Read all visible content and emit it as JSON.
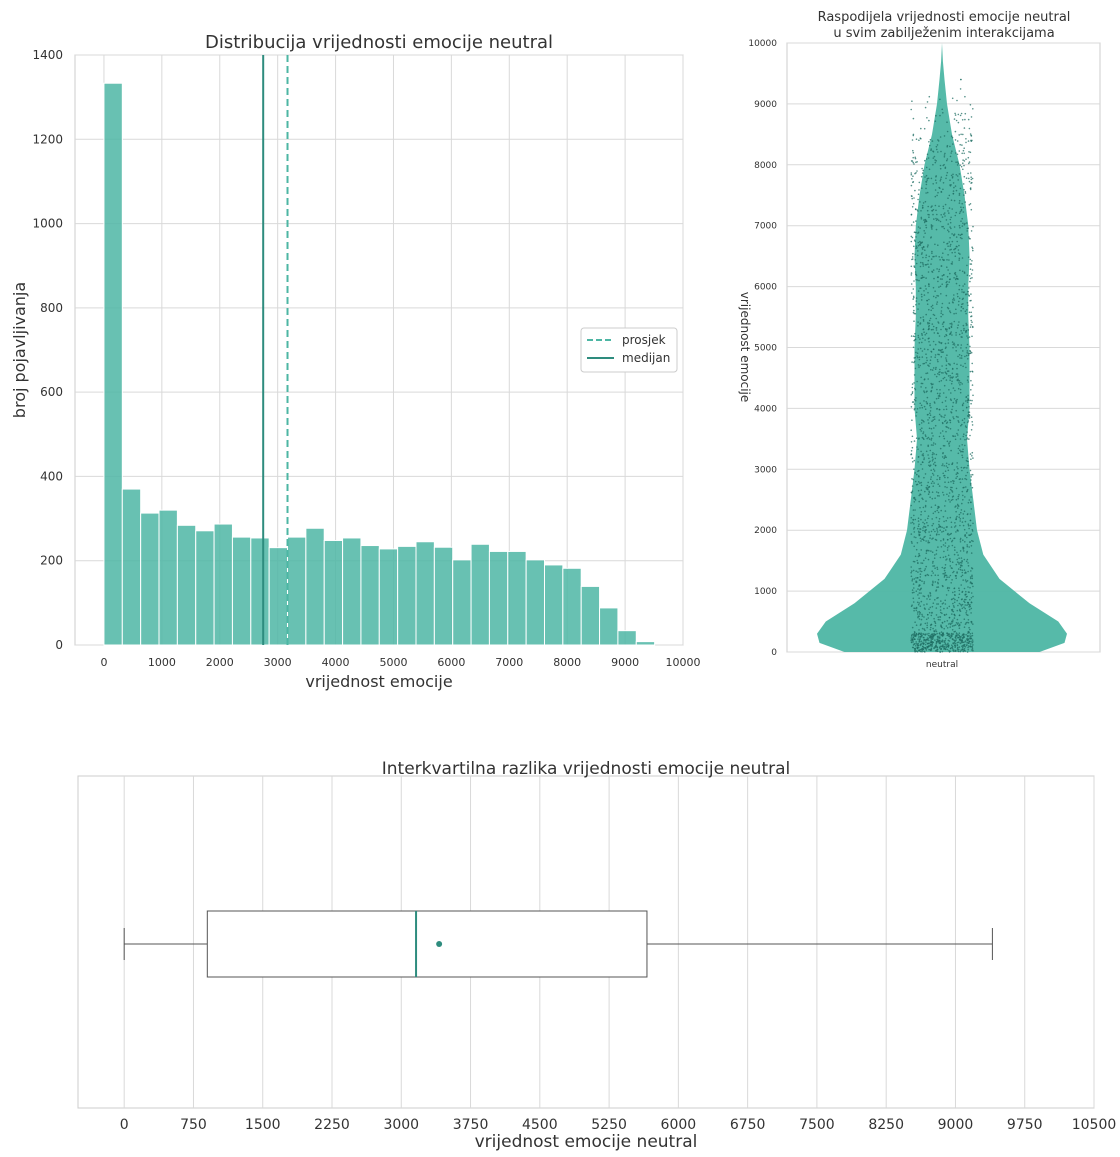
{
  "colors": {
    "accent": "#4DB6A4",
    "accent_dark": "#2E8C7E",
    "jitter": "#1F6E63",
    "grid": "#D9D9D9",
    "axis": "#CCCCCC",
    "text": "#333333"
  },
  "chart_data": [
    {
      "type": "bar",
      "title": "Distribucija vrijednosti emocije neutral",
      "xlabel": "vrijednost emocije",
      "ylabel": "broj pojavljivanja",
      "xlim": [
        -500,
        10000
      ],
      "ylim": [
        0,
        1400
      ],
      "xticks": [
        "0",
        "1000",
        "2000",
        "3000",
        "4000",
        "5000",
        "6000",
        "7000",
        "8000",
        "9000",
        "10000"
      ],
      "yticks": [
        "0",
        "200",
        "400",
        "600",
        "800",
        "1000",
        "1200",
        "1400"
      ],
      "bin_start": 0,
      "bin_width": 317,
      "values": [
        1333,
        370,
        313,
        320,
        284,
        271,
        287,
        256,
        254,
        231,
        256,
        277,
        248,
        254,
        236,
        228,
        234,
        245,
        232,
        202,
        239,
        222,
        222,
        202,
        190,
        182,
        139,
        88,
        34,
        8
      ],
      "mean": 3170,
      "median": 2750,
      "legend": {
        "position": "right",
        "entries": [
          "prosjek",
          "medijan"
        ]
      },
      "grid": true
    },
    {
      "type": "violin",
      "title_lines": [
        "Raspodijela vrijednosti emocije neutral",
        "u svim zabilježenim interakcijama"
      ],
      "ylabel": "vrijednost emocije",
      "category": "neutral",
      "ylim": [
        0,
        10000
      ],
      "yticks": [
        "0",
        "1000",
        "2000",
        "3000",
        "4000",
        "5000",
        "6000",
        "7000",
        "8000",
        "9000",
        "10000"
      ],
      "density_profile": [
        [
          0,
          0.78
        ],
        [
          150,
          0.98
        ],
        [
          300,
          1.0
        ],
        [
          500,
          0.93
        ],
        [
          800,
          0.7
        ],
        [
          1200,
          0.46
        ],
        [
          1600,
          0.33
        ],
        [
          2000,
          0.28
        ],
        [
          2500,
          0.25
        ],
        [
          3000,
          0.22
        ],
        [
          3500,
          0.2
        ],
        [
          4000,
          0.22
        ],
        [
          4500,
          0.22
        ],
        [
          5000,
          0.22
        ],
        [
          5500,
          0.21
        ],
        [
          6000,
          0.21
        ],
        [
          6500,
          0.22
        ],
        [
          7000,
          0.21
        ],
        [
          7500,
          0.18
        ],
        [
          8000,
          0.14
        ],
        [
          8500,
          0.08
        ],
        [
          9000,
          0.04
        ],
        [
          9400,
          0.02
        ],
        [
          9700,
          0.007
        ],
        [
          10000,
          0.0
        ]
      ],
      "jitter_points_range": [
        0,
        9400
      ],
      "grid": true
    },
    {
      "type": "box",
      "title": "Interkvartilna razlika vrijednosti emocije neutral",
      "xlabel": "vrijednost emocije neutral",
      "xlim": [
        -500,
        10500
      ],
      "xticks": [
        "0",
        "750",
        "1500",
        "2250",
        "3000",
        "3750",
        "4500",
        "5250",
        "6000",
        "6750",
        "7500",
        "8250",
        "9000",
        "9750",
        "10500"
      ],
      "min": 0,
      "q1": 900,
      "median": 3160,
      "q3": 5660,
      "max": 9400,
      "mean": 3410,
      "grid": true
    }
  ]
}
